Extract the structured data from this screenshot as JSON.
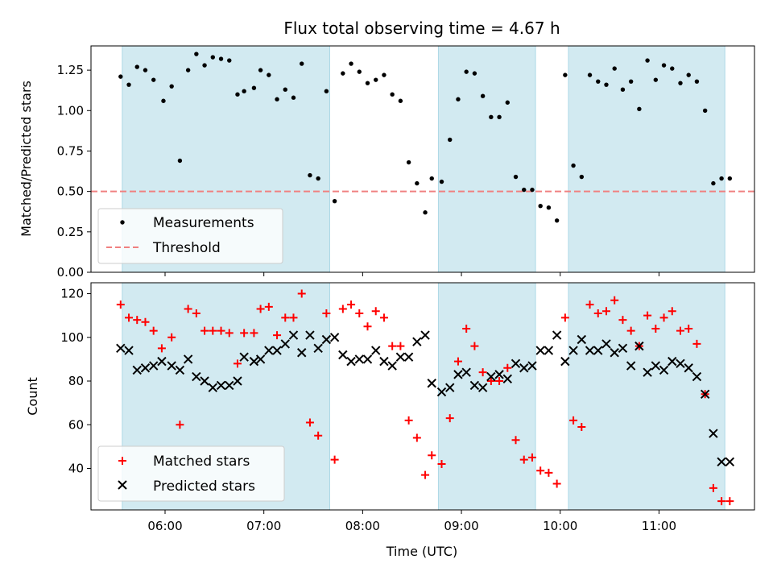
{
  "figure": {
    "title": "Flux total observing time = 4.67 h"
  },
  "chart_data": [
    {
      "type": "scatter",
      "panel": "top",
      "ylabel": "Matched/Predicted stars",
      "ylim": [
        0,
        1.4
      ],
      "yticks": [
        0.0,
        0.25,
        0.5,
        0.75,
        1.0,
        1.25
      ],
      "ytick_labels": [
        "0.00",
        "0.25",
        "0.50",
        "0.75",
        "1.00",
        "1.25"
      ],
      "threshold": {
        "name": "Threshold",
        "value": 0.5,
        "color": "#f08080"
      },
      "legend": {
        "placement": "lower-left",
        "entries": [
          "Measurements",
          "Threshold"
        ]
      },
      "series": [
        {
          "name": "Measurements",
          "color": "#000000",
          "marker": "dot",
          "x": [
            "05:33",
            "05:38",
            "05:43",
            "05:48",
            "05:53",
            "05:59",
            "06:04",
            "06:09",
            "06:14",
            "06:19",
            "06:24",
            "06:29",
            "06:34",
            "06:39",
            "06:44",
            "06:48",
            "06:54",
            "06:58",
            "07:03",
            "07:08",
            "07:13",
            "07:18",
            "07:23",
            "07:28",
            "07:33",
            "07:38",
            "07:43",
            "07:48",
            "07:53",
            "07:58",
            "08:03",
            "08:08",
            "08:13",
            "08:18",
            "08:23",
            "08:28",
            "08:33",
            "08:38",
            "08:42",
            "08:48",
            "08:53",
            "08:58",
            "09:03",
            "09:08",
            "09:13",
            "09:18",
            "09:23",
            "09:28",
            "09:33",
            "09:38",
            "09:43",
            "09:48",
            "09:53",
            "09:58",
            "10:03",
            "10:08",
            "10:13",
            "10:18",
            "10:23",
            "10:28",
            "10:33",
            "10:38",
            "10:43",
            "10:48",
            "10:53",
            "10:58",
            "11:03",
            "11:08",
            "11:13",
            "11:18",
            "11:23",
            "11:28",
            "11:33",
            "11:38",
            "11:43"
          ],
          "y": [
            1.21,
            1.16,
            1.27,
            1.25,
            1.19,
            1.06,
            1.15,
            0.69,
            1.25,
            1.35,
            1.28,
            1.33,
            1.32,
            1.31,
            1.1,
            1.12,
            1.14,
            1.25,
            1.22,
            1.07,
            1.13,
            1.08,
            1.29,
            0.6,
            0.58,
            1.12,
            0.44,
            1.23,
            1.29,
            1.24,
            1.17,
            1.19,
            1.22,
            1.1,
            1.06,
            0.68,
            0.55,
            0.37,
            0.58,
            0.56,
            0.82,
            1.07,
            1.24,
            1.23,
            1.09,
            0.96,
            0.96,
            1.05,
            0.59,
            0.51,
            0.51,
            0.41,
            0.4,
            0.32,
            1.22,
            0.66,
            0.59,
            1.22,
            1.18,
            1.16,
            1.26,
            1.13,
            1.18,
            1.01,
            1.31,
            1.19,
            1.28,
            1.26,
            1.17,
            1.22,
            1.18,
            1.0,
            0.55,
            0.58,
            0.58
          ]
        }
      ]
    },
    {
      "type": "scatter",
      "panel": "bottom",
      "xlabel": "Time (UTC)",
      "ylabel": "Count",
      "ylim": [
        21,
        125
      ],
      "yticks": [
        40,
        60,
        80,
        100,
        120
      ],
      "ytick_labels": [
        "40",
        "60",
        "80",
        "100",
        "120"
      ],
      "legend": {
        "placement": "lower-left",
        "entries": [
          "Matched stars",
          "Predicted stars"
        ]
      },
      "series": [
        {
          "name": "Matched stars",
          "color": "#ff0000",
          "marker": "plus",
          "x": [
            "05:33",
            "05:38",
            "05:43",
            "05:48",
            "05:53",
            "05:58",
            "06:04",
            "06:09",
            "06:14",
            "06:19",
            "06:24",
            "06:29",
            "06:34",
            "06:39",
            "06:44",
            "06:48",
            "06:54",
            "06:58",
            "07:03",
            "07:08",
            "07:13",
            "07:18",
            "07:23",
            "07:28",
            "07:33",
            "07:38",
            "07:43",
            "07:48",
            "07:53",
            "07:58",
            "08:03",
            "08:08",
            "08:13",
            "08:18",
            "08:23",
            "08:28",
            "08:33",
            "08:38",
            "08:42",
            "08:48",
            "08:53",
            "08:58",
            "09:03",
            "09:08",
            "09:13",
            "09:18",
            "09:23",
            "09:28",
            "09:33",
            "09:38",
            "09:43",
            "09:48",
            "09:53",
            "09:58",
            "10:03",
            "10:08",
            "10:13",
            "10:18",
            "10:23",
            "10:28",
            "10:33",
            "10:38",
            "10:43",
            "10:48",
            "10:53",
            "10:58",
            "11:03",
            "11:08",
            "11:13",
            "11:18",
            "11:23",
            "11:28",
            "11:33",
            "11:38",
            "11:43"
          ],
          "y": [
            115,
            109,
            108,
            107,
            103,
            95,
            100,
            60,
            113,
            111,
            103,
            103,
            103,
            102,
            88,
            102,
            102,
            113,
            114,
            101,
            109,
            109,
            120,
            61,
            55,
            111,
            44,
            113,
            115,
            111,
            105,
            112,
            109,
            96,
            96,
            62,
            54,
            37,
            46,
            42,
            63,
            89,
            104,
            96,
            84,
            80,
            80,
            86,
            53,
            44,
            45,
            39,
            38,
            33,
            109,
            62,
            59,
            115,
            111,
            112,
            117,
            108,
            103,
            96,
            110,
            104,
            109,
            112,
            103,
            104,
            97,
            74,
            31,
            25,
            25
          ]
        },
        {
          "name": "Predicted stars",
          "color": "#000000",
          "marker": "x",
          "x": [
            "05:33",
            "05:38",
            "05:43",
            "05:48",
            "05:53",
            "05:58",
            "06:04",
            "06:09",
            "06:14",
            "06:19",
            "06:24",
            "06:29",
            "06:34",
            "06:39",
            "06:44",
            "06:48",
            "06:54",
            "06:58",
            "07:03",
            "07:08",
            "07:13",
            "07:18",
            "07:23",
            "07:28",
            "07:33",
            "07:38",
            "07:43",
            "07:48",
            "07:53",
            "07:58",
            "08:03",
            "08:08",
            "08:13",
            "08:18",
            "08:23",
            "08:28",
            "08:33",
            "08:38",
            "08:42",
            "08:48",
            "08:53",
            "08:58",
            "09:03",
            "09:08",
            "09:13",
            "09:18",
            "09:23",
            "09:28",
            "09:33",
            "09:38",
            "09:43",
            "09:48",
            "09:53",
            "09:58",
            "10:03",
            "10:08",
            "10:13",
            "10:18",
            "10:23",
            "10:28",
            "10:33",
            "10:38",
            "10:43",
            "10:48",
            "10:53",
            "10:58",
            "11:03",
            "11:08",
            "11:13",
            "11:18",
            "11:23",
            "11:28",
            "11:33",
            "11:38",
            "11:43"
          ],
          "y": [
            95,
            94,
            85,
            86,
            87,
            89,
            87,
            85,
            90,
            82,
            80,
            77,
            78,
            78,
            80,
            91,
            89,
            90,
            94,
            94,
            97,
            101,
            93,
            101,
            95,
            99,
            100,
            92,
            89,
            90,
            90,
            94,
            89,
            87,
            91,
            91,
            98,
            101,
            79,
            75,
            77,
            83,
            84,
            78,
            77,
            82,
            83,
            81,
            88,
            86,
            87,
            94,
            94,
            101,
            89,
            94,
            99,
            94,
            94,
            97,
            93,
            95,
            87,
            96,
            84,
            87,
            85,
            89,
            88,
            86,
            82,
            74,
            56,
            43,
            43
          ]
        }
      ]
    }
  ],
  "shaded_intervals": [
    [
      "05:34",
      "07:40"
    ],
    [
      "08:46",
      "09:45"
    ],
    [
      "10:05",
      "11:40"
    ]
  ],
  "shade_color": "#add8e6",
  "xaxis": {
    "range": [
      "05:15",
      "11:58"
    ],
    "ticks": [
      "06:00",
      "07:00",
      "08:00",
      "09:00",
      "10:00",
      "11:00"
    ],
    "tick_labels": [
      "06:00",
      "07:00",
      "08:00",
      "09:00",
      "10:00",
      "11:00"
    ]
  }
}
